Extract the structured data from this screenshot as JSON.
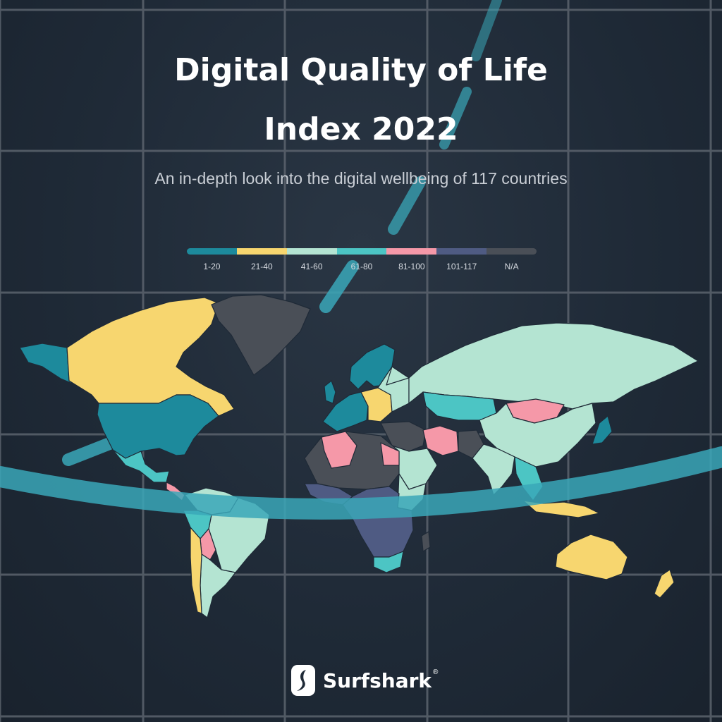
{
  "title_line1": "Digital Quality of Life",
  "title_line2": "Index 2022",
  "subtitle": "An in-depth look into the digital wellbeing of 117 countries",
  "legend": [
    {
      "label": "1-20",
      "color": "#1d8a9c"
    },
    {
      "label": "21-40",
      "color": "#f7d66f"
    },
    {
      "label": "41-60",
      "color": "#b4e4d2"
    },
    {
      "label": "61-80",
      "color": "#4cc5c4"
    },
    {
      "label": "81-100",
      "color": "#f598a8"
    },
    {
      "label": "101-117",
      "color": "#4f5b83"
    },
    {
      "label": "N/A",
      "color": "#4a4f57"
    }
  ],
  "brand": {
    "name": "Surfshark",
    "reg": "®"
  },
  "colors": {
    "background": "#1f2a37",
    "grid": "#5b636d",
    "accent_band": "#3aa7b8",
    "border": "#1f2a37"
  }
}
